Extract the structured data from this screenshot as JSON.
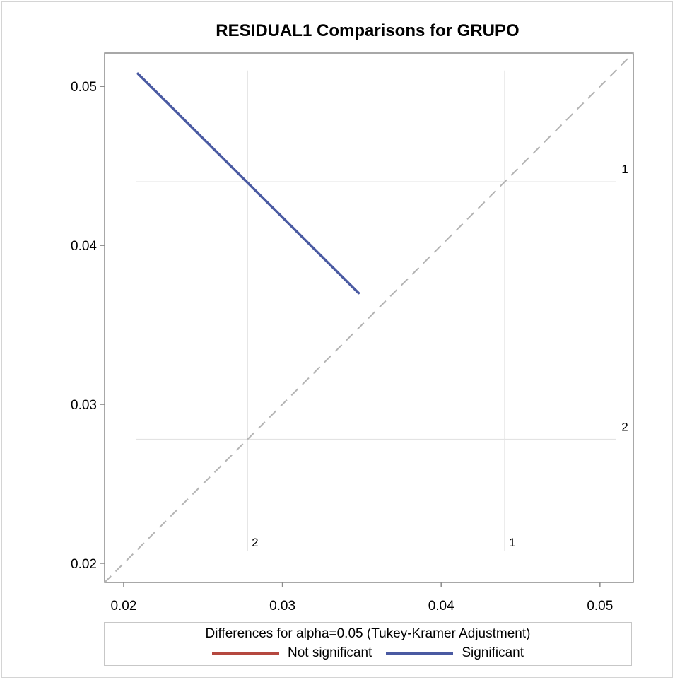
{
  "chart_data": {
    "type": "line",
    "title": "RESIDUAL1 Comparisons for GRUPO",
    "xlabel": "",
    "ylabel": "",
    "xlim": [
      0.0188,
      0.0521
    ],
    "ylim": [
      0.0188,
      0.0521
    ],
    "x_ticks": [
      "0.02",
      "0.03",
      "0.04",
      "0.05"
    ],
    "y_ticks": [
      "0.02",
      "0.03",
      "0.04",
      "0.05"
    ],
    "grid": false,
    "group_means": [
      {
        "label": "1",
        "value": 0.044
      },
      {
        "label": "2",
        "value": 0.0278
      }
    ],
    "reference_line": {
      "style": "dashed",
      "from": [
        0.0188,
        0.0188
      ],
      "to": [
        0.0521,
        0.0521
      ]
    },
    "comparisons": [
      {
        "pair": [
          "2",
          "1"
        ],
        "significant": true,
        "from": [
          0.0209,
          0.0508
        ],
        "to": [
          0.0348,
          0.037
        ]
      }
    ],
    "legend": {
      "title": "Differences for alpha=0.05 (Tukey-Kramer Adjustment)",
      "placement": "bottom",
      "items": [
        {
          "label": "Not significant",
          "color": "#b5483f"
        },
        {
          "label": "Significant",
          "color": "#4a5aa2"
        }
      ]
    },
    "colors": {
      "significant": "#4a5aa2",
      "not_significant": "#b5483f",
      "reference": "#b4b4b4",
      "mean_lines": "#e3e3e3",
      "axis": "#8c8c8c"
    }
  }
}
